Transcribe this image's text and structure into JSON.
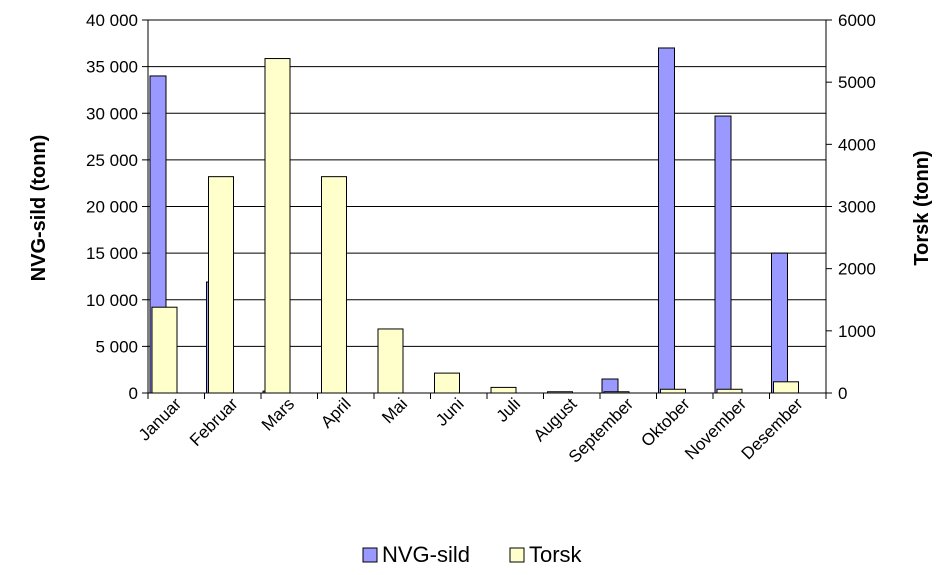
{
  "chart_data": {
    "type": "bar",
    "categories": [
      "Januar",
      "Februar",
      "Mars",
      "April",
      "Mai",
      "Juni",
      "Juli",
      "August",
      "September",
      "Oktober",
      "November",
      "Desember"
    ],
    "series": [
      {
        "name": "NVG-sild",
        "axis": "left",
        "color": "#9999ff",
        "values": [
          34000,
          11900,
          200,
          0,
          0,
          0,
          0,
          0,
          1500,
          37000,
          29700,
          15000
        ]
      },
      {
        "name": "Torsk",
        "axis": "right",
        "color": "#ffffcc",
        "values": [
          1380,
          3480,
          5380,
          3480,
          1030,
          320,
          90,
          20,
          20,
          60,
          60,
          180
        ]
      }
    ],
    "ylabel_left": "NVG-sild (tonn)",
    "ylabel_right": "Torsk (tonn)",
    "ylim_left": [
      0,
      40000
    ],
    "ylim_right": [
      0,
      6000
    ],
    "yticks_left": [
      "0",
      "5 000",
      "10 000",
      "15 000",
      "20 000",
      "25 000",
      "30 000",
      "35 000",
      "40 000"
    ],
    "yticks_right": [
      "0",
      "1000",
      "2000",
      "3000",
      "4000",
      "5000",
      "6000"
    ],
    "grid": true,
    "legend_position": "bottom"
  }
}
